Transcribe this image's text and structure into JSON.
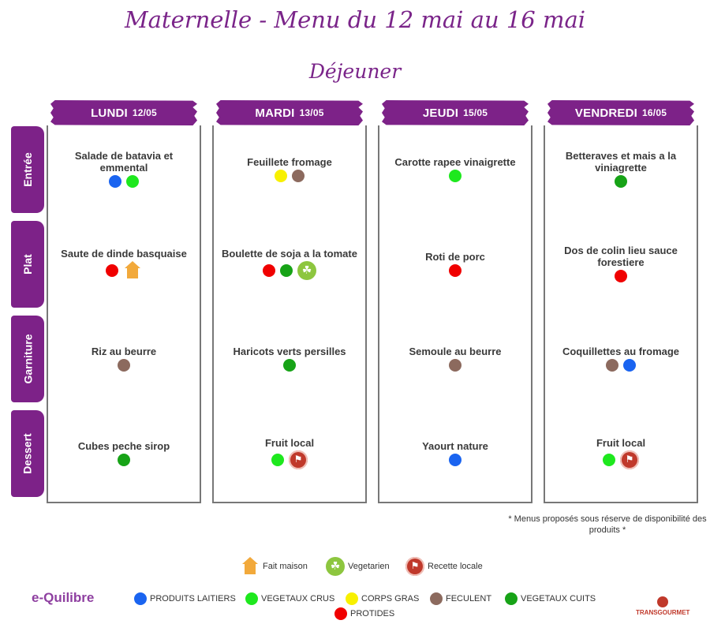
{
  "title": "Maternelle - Menu du 12 mai au 16 mai",
  "meal": "Déjeuner",
  "rows": [
    "Entrée",
    "Plat",
    "Garniture",
    "Dessert"
  ],
  "days": [
    {
      "name": "LUNDI",
      "date": "12/05",
      "items": [
        {
          "dish": "Salade de batavia et emmental",
          "markers": [
            "dairy",
            "raw_veg"
          ]
        },
        {
          "dish": "Saute de dinde basquaise",
          "markers": [
            "protein",
            "fait_maison"
          ]
        },
        {
          "dish": "Riz au beurre",
          "markers": [
            "starch"
          ]
        },
        {
          "dish": "Cubes peche sirop",
          "markers": [
            "cooked_veg"
          ]
        }
      ]
    },
    {
      "name": "MARDI",
      "date": "13/05",
      "items": [
        {
          "dish": "Feuillete fromage",
          "markers": [
            "fat",
            "starch"
          ]
        },
        {
          "dish": "Boulette de soja a la tomate",
          "markers": [
            "protein",
            "cooked_veg",
            "vegetarien"
          ]
        },
        {
          "dish": "Haricots verts persilles",
          "markers": [
            "cooked_veg"
          ]
        },
        {
          "dish": "Fruit local",
          "markers": [
            "raw_veg",
            "recette_locale"
          ]
        }
      ]
    },
    {
      "name": "JEUDI",
      "date": "15/05",
      "items": [
        {
          "dish": "Carotte rapee vinaigrette",
          "markers": [
            "raw_veg"
          ]
        },
        {
          "dish": "Roti de porc",
          "markers": [
            "protein"
          ]
        },
        {
          "dish": "Semoule au beurre",
          "markers": [
            "starch"
          ]
        },
        {
          "dish": "Yaourt nature",
          "markers": [
            "dairy"
          ]
        }
      ]
    },
    {
      "name": "VENDREDI",
      "date": "16/05",
      "items": [
        {
          "dish": "Betteraves et mais a la viniagrette",
          "markers": [
            "cooked_veg"
          ]
        },
        {
          "dish": "Dos de colin lieu sauce forestiere",
          "markers": [
            "protein"
          ]
        },
        {
          "dish": "Coquillettes au fromage",
          "markers": [
            "starch",
            "dairy"
          ]
        },
        {
          "dish": "Fruit local",
          "markers": [
            "raw_veg",
            "recette_locale"
          ]
        }
      ]
    }
  ],
  "colors": {
    "dairy": "#1a64f0",
    "raw_veg": "#1ee81e",
    "fat": "#f8f000",
    "starch": "#8c6a5e",
    "cooked_veg": "#17a317",
    "protein": "#f00000",
    "accent": "#7d2288"
  },
  "footnote": "* Menus proposés sous réserve de disponibilité des produits *",
  "legend": {
    "fait_maison": "Fait maison",
    "vegetarien": "Vegetarien",
    "recette_locale": "Recette locale",
    "dairy": "PRODUITS LAITIERS",
    "raw_veg": "VEGETAUX CRUS",
    "fat": "CORPS GRAS",
    "starch": "FECULENT",
    "cooked_veg": "VEGETAUX CUITS",
    "protein": "PROTIDES"
  },
  "logos": {
    "left": "e-Quilibre",
    "right": "TRANSGOURMET"
  }
}
